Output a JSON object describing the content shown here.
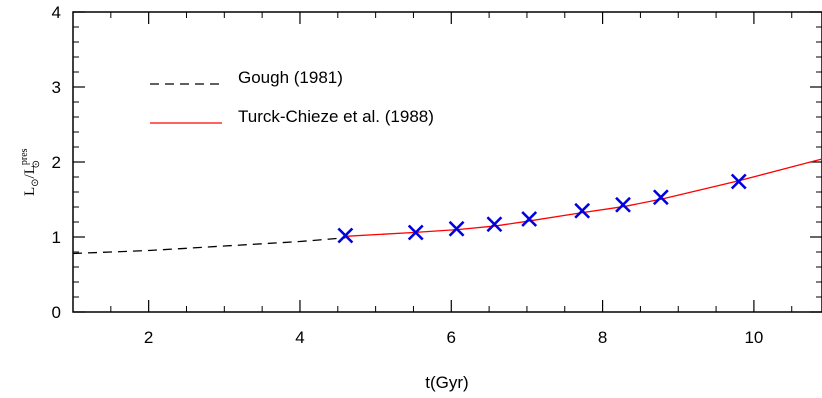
{
  "chart_data": {
    "type": "line",
    "xlabel": "t(Gyr)",
    "ylabel": {
      "main_left": "L",
      "sub_left": "⊙",
      "slash": "/",
      "main_right": "L",
      "sup_right": "pres",
      "sub_right": "⊙"
    },
    "xlim": [
      1.0,
      10.9
    ],
    "ylim": [
      0,
      4
    ],
    "xticks": [
      2,
      4,
      6,
      8,
      10
    ],
    "yticks": [
      0,
      1,
      2,
      3,
      4
    ],
    "legend_placement": "top-left",
    "grid": false,
    "series": [
      {
        "name": "Gough (1981)",
        "style": "dashed",
        "color": "#000000",
        "x": [
          1.0,
          1.5,
          2.0,
          2.5,
          3.0,
          3.5,
          4.0,
          4.6
        ],
        "y": [
          0.78,
          0.8,
          0.82,
          0.85,
          0.88,
          0.91,
          0.94,
          0.99
        ]
      },
      {
        "name": "Turck-Chieze et al. (1988)",
        "style": "solid",
        "color": "#ff0000",
        "x": [
          4.6,
          5.5,
          6.1,
          6.6,
          7.0,
          7.7,
          8.3,
          8.8,
          9.8,
          10.9
        ],
        "y": [
          1.01,
          1.06,
          1.1,
          1.15,
          1.21,
          1.32,
          1.41,
          1.51,
          1.75,
          2.04
        ]
      },
      {
        "name": "",
        "style": "markers",
        "marker": "x",
        "color": "#0000e0",
        "x": [
          4.6,
          5.53,
          6.07,
          6.57,
          7.03,
          7.73,
          8.27,
          8.77,
          9.8
        ],
        "y": [
          1.02,
          1.06,
          1.11,
          1.17,
          1.24,
          1.35,
          1.43,
          1.53,
          1.74
        ]
      }
    ]
  }
}
